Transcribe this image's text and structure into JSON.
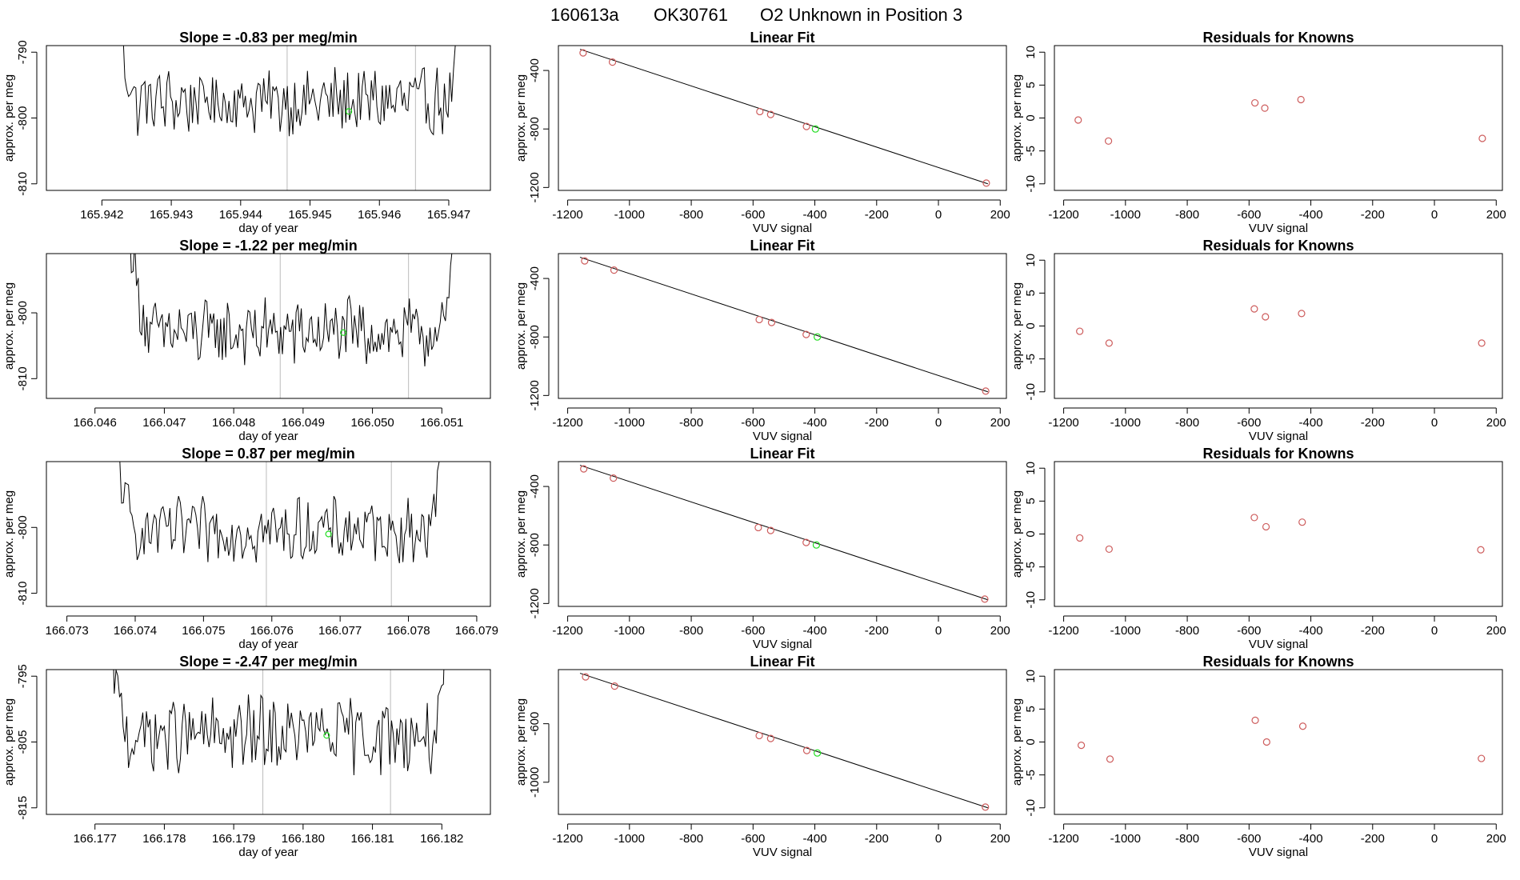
{
  "figure": {
    "run_id": "160613a",
    "tank": "OK30761",
    "label": "O2 Unknown in Position  3"
  },
  "colors": {
    "line": "#000000",
    "knowns": "#cd5c5c",
    "unknown": "#22dd22",
    "vline": "#bbbbbb"
  },
  "chart_data": [
    {
      "type": "line",
      "title": "Slope =  -0.83  per meg/min",
      "xlabel": "day of year",
      "ylabel": "approx. per meg",
      "xlim": [
        165.9412,
        165.9476
      ],
      "ylim": [
        -811,
        -789
      ],
      "xticks": [
        165.942,
        165.943,
        165.944,
        165.945,
        165.946,
        165.947
      ],
      "xtick_labels": [
        "165.942",
        "165.943",
        "165.944",
        "165.945",
        "165.946",
        "165.947"
      ],
      "yticks": [
        -790,
        -800,
        -810
      ],
      "ytick_labels": [
        "-790",
        "-800",
        "-810"
      ],
      "series": [
        {
          "name": "signal",
          "x_start": 165.9422,
          "x_end": 165.9472,
          "y_base": -797.5,
          "noise": 3.2
        }
      ],
      "vlines": [
        165.94467,
        165.94652
      ],
      "unknown_point": {
        "x": 165.94556,
        "y": -799
      }
    },
    {
      "type": "line",
      "title": "Slope =  -1.22  per meg/min",
      "xlabel": "day of year",
      "ylabel": "approx. per meg",
      "xlim": [
        166.0453,
        166.0517
      ],
      "ylim": [
        -813,
        -791
      ],
      "xticks": [
        166.046,
        166.047,
        166.048,
        166.049,
        166.05,
        166.051
      ],
      "xtick_labels": [
        "166.046",
        "166.047",
        "166.048",
        "166.049",
        "166.050",
        "166.051"
      ],
      "yticks": [
        -800,
        -810
      ],
      "ytick_labels": [
        "-800",
        "-810"
      ],
      "series": [
        {
          "name": "signal",
          "x_start": 166.0465,
          "x_end": 166.0512,
          "y_base": -803,
          "noise": 3.2
        }
      ],
      "vlines": [
        166.04867,
        166.05052
      ],
      "unknown_point": {
        "x": 166.04958,
        "y": -803
      }
    },
    {
      "type": "line",
      "title": "Slope =  0.87  per meg/min",
      "xlabel": "day of year",
      "ylabel": "approx. per meg",
      "xlim": [
        166.0727,
        166.0792
      ],
      "ylim": [
        -812,
        -790
      ],
      "xticks": [
        166.073,
        166.074,
        166.075,
        166.076,
        166.077,
        166.078,
        166.079
      ],
      "xtick_labels": [
        "166.073",
        "166.074",
        "166.075",
        "166.076",
        "166.077",
        "166.078",
        "166.079"
      ],
      "yticks": [
        -800,
        -810
      ],
      "ytick_labels": [
        "-800",
        "-810"
      ],
      "series": [
        {
          "name": "signal",
          "x_start": 166.0737,
          "x_end": 166.0785,
          "y_base": -800.5,
          "noise": 3.0
        }
      ],
      "vlines": [
        166.07592,
        166.07775
      ],
      "unknown_point": {
        "x": 166.07683,
        "y": -801
      }
    },
    {
      "type": "line",
      "title": "Slope =  -2.47  per meg/min",
      "xlabel": "day of year",
      "ylabel": "approx. per meg",
      "xlim": [
        166.1763,
        166.1827
      ],
      "ylim": [
        -816,
        -794
      ],
      "xticks": [
        166.177,
        166.178,
        166.179,
        166.18,
        166.181,
        166.182
      ],
      "xtick_labels": [
        "166.177",
        "166.178",
        "166.179",
        "166.180",
        "166.181",
        "166.182"
      ],
      "yticks": [
        -795,
        -805,
        -815
      ],
      "ytick_labels": [
        "-795",
        "-805",
        "-815"
      ],
      "series": [
        {
          "name": "signal",
          "x_start": 166.1772,
          "x_end": 166.1821,
          "y_base": -804,
          "noise": 3.6
        }
      ],
      "vlines": [
        166.17942,
        166.18126
      ],
      "unknown_point": {
        "x": 166.18034,
        "y": -804
      }
    },
    {
      "type": "scatter",
      "title": "Linear Fit",
      "xlabel": "VUV signal",
      "ylabel": "approx. per meg",
      "xlim": [
        -1230,
        220
      ],
      "ylim": [
        -1220,
        -230
      ],
      "xticks": [
        -1200,
        -1000,
        -800,
        -600,
        -400,
        -200,
        0,
        200
      ],
      "xtick_labels": [
        "-1200",
        "-1000",
        "-800",
        "-600",
        "-400",
        "-200",
        "0",
        "200"
      ],
      "yticks": [
        -400,
        -800,
        -1200
      ],
      "ytick_labels": [
        "-400",
        "-800",
        "-1200"
      ],
      "fit_line": {
        "x": [
          -1160,
          160
        ],
        "y": [
          -255,
          -1175
        ]
      },
      "knowns": {
        "x": [
          -1150,
          -1055,
          -578,
          -543,
          -427,
          155
        ],
        "y": [
          -280,
          -343,
          -681,
          -701,
          -783,
          -1170
        ]
      },
      "unknown_point": {
        "x": -398,
        "y": -800
      }
    },
    {
      "type": "scatter",
      "title": "Linear Fit",
      "xlabel": "VUV signal",
      "ylabel": "approx. per meg",
      "xlim": [
        -1230,
        220
      ],
      "ylim": [
        -1220,
        -230
      ],
      "xticks": [
        -1200,
        -1000,
        -800,
        -600,
        -400,
        -200,
        0,
        200
      ],
      "xtick_labels": [
        "-1200",
        "-1000",
        "-800",
        "-600",
        "-400",
        "-200",
        "0",
        "200"
      ],
      "yticks": [
        -400,
        -800,
        -1200
      ],
      "ytick_labels": [
        "-400",
        "-800",
        "-1200"
      ],
      "fit_line": {
        "x": [
          -1160,
          160
        ],
        "y": [
          -255,
          -1175
        ]
      },
      "knowns": {
        "x": [
          -1145,
          -1050,
          -580,
          -540,
          -428,
          153
        ],
        "y": [
          -280,
          -343,
          -681,
          -701,
          -783,
          -1170
        ]
      },
      "unknown_point": {
        "x": -392,
        "y": -800
      }
    },
    {
      "type": "scatter",
      "title": "Linear Fit",
      "xlabel": "VUV signal",
      "ylabel": "approx. per meg",
      "xlim": [
        -1230,
        220
      ],
      "ylim": [
        -1220,
        -230
      ],
      "xticks": [
        -1200,
        -1000,
        -800,
        -600,
        -400,
        -200,
        0,
        200
      ],
      "xtick_labels": [
        "-1200",
        "-1000",
        "-800",
        "-600",
        "-400",
        "-200",
        "0",
        "200"
      ],
      "yticks": [
        -400,
        -800,
        -1200
      ],
      "ytick_labels": [
        "-400",
        "-800",
        "-1200"
      ],
      "fit_line": {
        "x": [
          -1160,
          160
        ],
        "y": [
          -255,
          -1175
        ]
      },
      "knowns": {
        "x": [
          -1148,
          -1052,
          -583,
          -543,
          -428,
          150
        ],
        "y": [
          -280,
          -343,
          -681,
          -701,
          -783,
          -1170
        ]
      },
      "unknown_point": {
        "x": -395,
        "y": -800
      }
    },
    {
      "type": "scatter",
      "title": "Linear Fit",
      "xlabel": "VUV signal",
      "ylabel": "approx. per meg",
      "xlim": [
        -1230,
        220
      ],
      "ylim": [
        -1220,
        -230
      ],
      "xticks": [
        -1200,
        -1000,
        -800,
        -600,
        -400,
        -200,
        0,
        200
      ],
      "xtick_labels": [
        "-1200",
        "-1000",
        "-800",
        "-600",
        "-400",
        "-200",
        "0",
        "200"
      ],
      "yticks": [
        -600,
        -1000
      ],
      "ytick_labels": [
        "-600",
        "-1000"
      ],
      "fit_line": {
        "x": [
          -1160,
          160
        ],
        "y": [
          -255,
          -1175
        ]
      },
      "knowns": {
        "x": [
          -1142,
          -1048,
          -580,
          -543,
          -426,
          152
        ],
        "y": [
          -280,
          -343,
          -681,
          -701,
          -783,
          -1170
        ]
      },
      "unknown_point": {
        "x": -392,
        "y": -800
      }
    },
    {
      "type": "scatter",
      "title": "Residuals for Knowns",
      "xlabel": "VUV signal",
      "ylabel": "approx. per meg",
      "xlim": [
        -1230,
        220
      ],
      "ylim": [
        -11,
        11
      ],
      "xticks": [
        -1200,
        -1000,
        -800,
        -600,
        -400,
        -200,
        0,
        200
      ],
      "xtick_labels": [
        "-1200",
        "-1000",
        "-800",
        "-600",
        "-400",
        "-200",
        "0",
        "200"
      ],
      "yticks": [
        10,
        5,
        0,
        -5,
        -10
      ],
      "ytick_labels": [
        "10",
        "5",
        "0",
        "-5",
        "-10"
      ],
      "knowns": {
        "x": [
          -1153,
          -1055,
          -581,
          -549,
          -432,
          155
        ],
        "y": [
          -0.3,
          -3.5,
          2.3,
          1.5,
          2.8,
          -3.1
        ]
      }
    },
    {
      "type": "scatter",
      "title": "Residuals for Knowns",
      "xlabel": "VUV signal",
      "ylabel": "approx. per meg",
      "xlim": [
        -1230,
        220
      ],
      "ylim": [
        -11,
        11
      ],
      "xticks": [
        -1200,
        -1000,
        -800,
        -600,
        -400,
        -200,
        0,
        200
      ],
      "xtick_labels": [
        "-1200",
        "-1000",
        "-800",
        "-600",
        "-400",
        "-200",
        "0",
        "200"
      ],
      "yticks": [
        10,
        5,
        0,
        -5,
        -10
      ],
      "ytick_labels": [
        "10",
        "5",
        "0",
        "-5",
        "-10"
      ],
      "knowns": {
        "x": [
          -1148,
          -1053,
          -583,
          -547,
          -430,
          153
        ],
        "y": [
          -0.8,
          -2.6,
          2.6,
          1.4,
          1.9,
          -2.6
        ]
      }
    },
    {
      "type": "scatter",
      "title": "Residuals for Knowns",
      "xlabel": "VUV signal",
      "ylabel": "approx. per meg",
      "xlim": [
        -1230,
        220
      ],
      "ylim": [
        -11,
        11
      ],
      "xticks": [
        -1200,
        -1000,
        -800,
        -600,
        -400,
        -200,
        0,
        200
      ],
      "xtick_labels": [
        "-1200",
        "-1000",
        "-800",
        "-600",
        "-400",
        "-200",
        "0",
        "200"
      ],
      "yticks": [
        10,
        5,
        0,
        -5,
        -10
      ],
      "ytick_labels": [
        "10",
        "5",
        "0",
        "-5",
        "-10"
      ],
      "knowns": {
        "x": [
          -1148,
          -1053,
          -583,
          -545,
          -428,
          150
        ],
        "y": [
          -0.6,
          -2.3,
          2.5,
          1.1,
          1.8,
          -2.4
        ]
      }
    },
    {
      "type": "scatter",
      "title": "Residuals for Knowns",
      "xlabel": "VUV signal",
      "ylabel": "approx. per meg",
      "xlim": [
        -1230,
        220
      ],
      "ylim": [
        -11,
        11
      ],
      "xticks": [
        -1200,
        -1000,
        -800,
        -600,
        -400,
        -200,
        0,
        200
      ],
      "xtick_labels": [
        "-1200",
        "-1000",
        "-800",
        "-600",
        "-400",
        "-200",
        "0",
        "200"
      ],
      "yticks": [
        10,
        5,
        0,
        -5,
        -10
      ],
      "ytick_labels": [
        "10",
        "5",
        "0",
        "-5",
        "-10"
      ],
      "knowns": {
        "x": [
          -1143,
          -1050,
          -580,
          -543,
          -426,
          152
        ],
        "y": [
          -0.5,
          -2.6,
          3.3,
          0.0,
          2.4,
          -2.5
        ]
      }
    }
  ]
}
